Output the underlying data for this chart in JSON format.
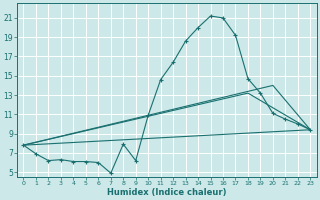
{
  "xlabel": "Humidex (Indice chaleur)",
  "bg_color": "#cce8e8",
  "grid_color": "#ffffff",
  "line_color": "#1a7070",
  "xlim": [
    -0.5,
    23.5
  ],
  "ylim": [
    4.5,
    22.5
  ],
  "xticks": [
    0,
    1,
    2,
    3,
    4,
    5,
    6,
    7,
    8,
    9,
    10,
    11,
    12,
    13,
    14,
    15,
    16,
    17,
    18,
    19,
    20,
    21,
    22,
    23
  ],
  "yticks": [
    5,
    7,
    9,
    11,
    13,
    15,
    17,
    19,
    21
  ],
  "main_x": [
    0,
    1,
    2,
    3,
    4,
    5,
    6,
    7,
    8,
    9,
    10,
    11,
    12,
    13,
    14,
    15,
    16,
    17,
    18,
    19,
    20,
    21,
    22,
    23
  ],
  "main_y": [
    7.8,
    6.9,
    6.2,
    6.3,
    6.1,
    6.1,
    6.0,
    4.9,
    7.9,
    6.2,
    10.9,
    14.6,
    16.4,
    18.6,
    20.0,
    21.2,
    21.0,
    19.2,
    14.7,
    13.2,
    11.1,
    10.5,
    10.0,
    9.4
  ],
  "line2_x": [
    0,
    23
  ],
  "line2_y": [
    7.8,
    9.4
  ],
  "line3_x": [
    0,
    18,
    23
  ],
  "line3_y": [
    7.8,
    13.2,
    9.4
  ],
  "line4_x": [
    0,
    20,
    23
  ],
  "line4_y": [
    7.8,
    14.0,
    9.4
  ]
}
